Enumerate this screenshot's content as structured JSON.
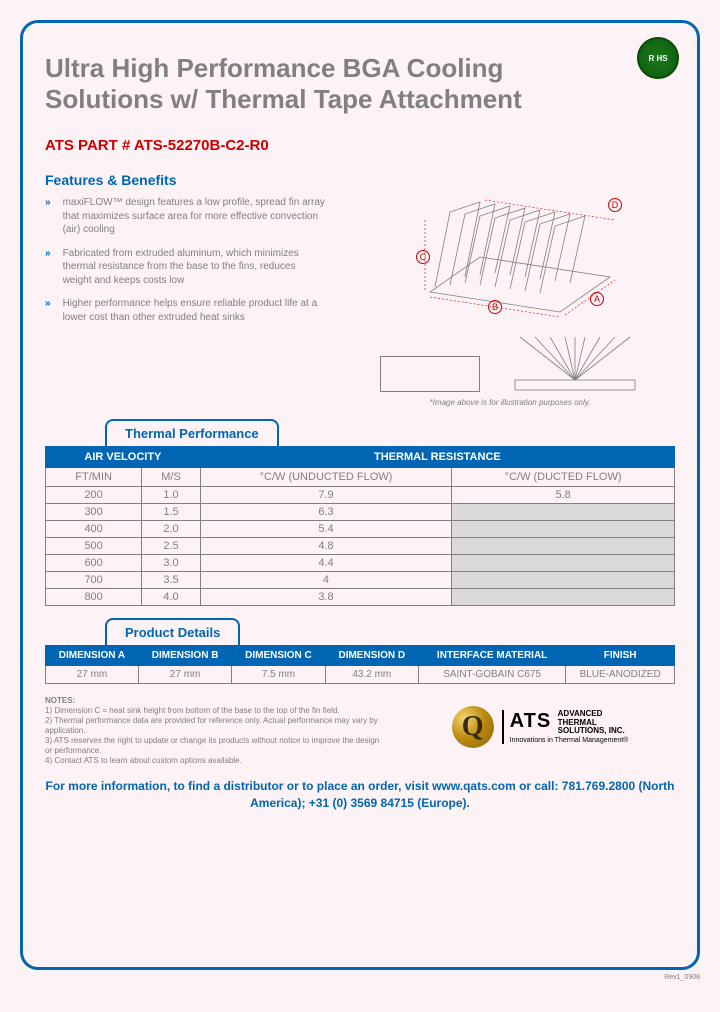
{
  "rohs": "R HS",
  "title": "Ultra High Performance BGA Cooling Solutions w/ Thermal Tape Attachment",
  "part_number": "ATS PART # ATS-52270B-C2-R0",
  "features_heading": "Features & Benefits",
  "features": [
    "maxiFLOW™ design features a low profile, spread fin array that maximizes surface area for more effective convection (air) cooling",
    "Fabricated from extruded aluminum, which minimizes thermal resistance from the base to the fins, reduces weight and keeps costs low",
    "Higher performance helps ensure reliable product life at a lower cost than other extruded heat sinks"
  ],
  "image_note": "*Image above is for illustration purposes only.",
  "thermal_tab": "Thermal Performance",
  "thermal_headers": {
    "air": "AIR VELOCITY",
    "res": "THERMAL RESISTANCE"
  },
  "thermal_subheaders": {
    "ft": "FT/MIN",
    "ms": "M/S",
    "und": "°C/W (UNDUCTED FLOW)",
    "duc": "°C/W (DUCTED FLOW)"
  },
  "thermal_rows": [
    {
      "ft": "200",
      "ms": "1.0",
      "und": "7.9",
      "duc": "5.8"
    },
    {
      "ft": "300",
      "ms": "1.5",
      "und": "6.3",
      "duc": ""
    },
    {
      "ft": "400",
      "ms": "2.0",
      "und": "5.4",
      "duc": ""
    },
    {
      "ft": "500",
      "ms": "2.5",
      "und": "4.8",
      "duc": ""
    },
    {
      "ft": "600",
      "ms": "3.0",
      "und": "4.4",
      "duc": ""
    },
    {
      "ft": "700",
      "ms": "3.5",
      "und": "4",
      "duc": ""
    },
    {
      "ft": "800",
      "ms": "4.0",
      "und": "3.8",
      "duc": ""
    }
  ],
  "details_tab": "Product Details",
  "details_headers": [
    "DIMENSION A",
    "DIMENSION B",
    "DIMENSION C",
    "DIMENSION D",
    "INTERFACE MATERIAL",
    "FINISH"
  ],
  "details_row": [
    "27 mm",
    "27 mm",
    "7.5 mm",
    "43.2 mm",
    "SAINT-GOBAIN C675",
    "BLUE-ANODIZED"
  ],
  "notes_heading": "NOTES:",
  "notes": [
    "Dimension C = heat sink height from bottom of the base to the top of the fin field.",
    "Thermal performance data are provided for reference only. Actual performance may vary by application.",
    "ATS reserves the right to update or change its products without notice to improve the design or performance.",
    "Contact ATS to learn about custom options available."
  ],
  "logo": {
    "ats": "ATS",
    "line1": "ADVANCED",
    "line2": "THERMAL",
    "line3": "SOLUTIONS, INC.",
    "tagline": "Innovations in Thermal Management®"
  },
  "contact": "For more information, to find a distributor or to place an order, visit www.qats.com or call: 781.769.2800 (North America); +31 (0) 3569 84715 (Europe).",
  "rev": "Rev1_0908",
  "dim_labels": {
    "a": "A",
    "b": "B",
    "c": "C",
    "d": "D"
  },
  "colors": {
    "primary": "#0066b3",
    "accent": "#cc0000",
    "text": "#808080",
    "shade": "#d9d9d9"
  }
}
